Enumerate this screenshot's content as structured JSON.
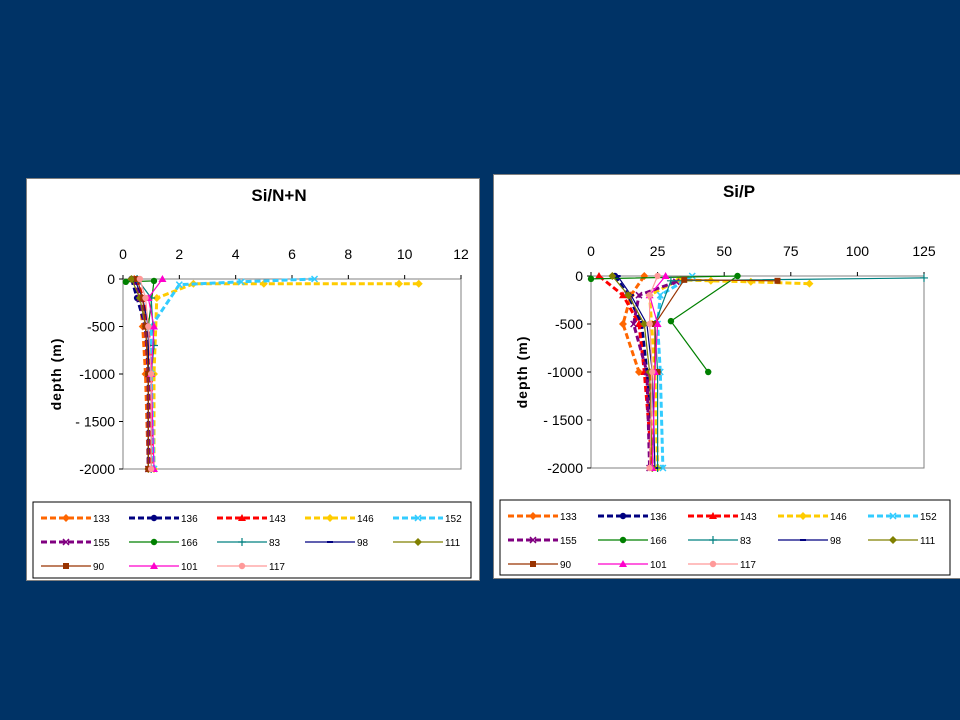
{
  "chart_data": [
    {
      "type": "line",
      "title": "Si/N+N",
      "ylabel": "depth (m)",
      "xlabel": "",
      "xlim": [
        0,
        12
      ],
      "ylim": [
        -2000,
        0
      ],
      "xticks": [
        "0",
        "2",
        "4",
        "6",
        "8",
        "10",
        "12"
      ],
      "yticks": [
        "0",
        "-500",
        "-1000",
        "- 1500",
        "-2000"
      ],
      "grid": false,
      "legend": "bottom",
      "series": [
        {
          "name": "133",
          "color": "#ff6600",
          "dash": "6,3",
          "marker": "diamond",
          "x": [
            0.4,
            0.6,
            0.7,
            0.8,
            0.9
          ],
          "y": [
            0,
            -200,
            -500,
            -1000,
            -2000
          ]
        },
        {
          "name": "136",
          "color": "#000080",
          "dash": "6,3",
          "marker": "circle",
          "x": [
            0.3,
            0.5,
            0.8,
            0.9,
            0.9
          ],
          "y": [
            0,
            -200,
            -500,
            -1000,
            -2000
          ]
        },
        {
          "name": "143",
          "color": "#ff0000",
          "dash": "6,3",
          "marker": "triangle",
          "x": [
            0.5,
            0.7,
            0.9,
            1.0,
            1.0
          ],
          "y": [
            0,
            -200,
            -500,
            -1000,
            -2000
          ]
        },
        {
          "name": "146",
          "color": "#ffcc00",
          "dash": "6,3",
          "marker": "diamond",
          "x": [
            10.5,
            9.8,
            5.0,
            2.5,
            1.2,
            1.1,
            1.1
          ],
          "y": [
            -50,
            -50,
            -50,
            -50,
            -200,
            -1000,
            -2000
          ]
        },
        {
          "name": "152",
          "color": "#33ccff",
          "dash": "6,3",
          "marker": "x",
          "x": [
            6.8,
            4.2,
            2.0,
            1.0,
            1.0,
            1.1
          ],
          "y": [
            0,
            -30,
            -60,
            -500,
            -1000,
            -2000
          ]
        },
        {
          "name": "155",
          "color": "#800080",
          "dash": "6,3",
          "marker": "x",
          "x": [
            0.4,
            0.6,
            0.8,
            0.9,
            0.9
          ],
          "y": [
            0,
            -200,
            -500,
            -1000,
            -2000
          ]
        },
        {
          "name": "166",
          "color": "#008000",
          "dash": "",
          "marker": "circle",
          "x": [
            0.1,
            1.1,
            0.9,
            0.9
          ],
          "y": [
            -30,
            -20,
            -500,
            -1000
          ]
        },
        {
          "name": "83",
          "color": "#008080",
          "dash": "",
          "marker": "plus",
          "x": [
            0.5,
            1.0,
            1.1,
            1.0,
            1.0
          ],
          "y": [
            0,
            -200,
            -700,
            -1000,
            -2000
          ]
        },
        {
          "name": "98",
          "color": "#000080",
          "dash": "",
          "marker": "dash",
          "x": [
            0.4,
            0.7,
            0.9,
            0.9,
            0.9
          ],
          "y": [
            0,
            -200,
            -500,
            -1000,
            -2000
          ]
        },
        {
          "name": "111",
          "color": "#808000",
          "dash": "",
          "marker": "diamond",
          "x": [
            0.3,
            0.6,
            0.8,
            0.9,
            0.9
          ],
          "y": [
            0,
            -200,
            -500,
            -1000,
            -2000
          ]
        },
        {
          "name": "90",
          "color": "#993300",
          "dash": "",
          "marker": "square",
          "x": [
            0.5,
            0.7,
            0.8,
            0.9,
            0.9
          ],
          "y": [
            0,
            -200,
            -500,
            -1000,
            -2000
          ]
        },
        {
          "name": "101",
          "color": "#ff00cc",
          "dash": "",
          "marker": "triangle",
          "x": [
            1.4,
            0.9,
            1.1,
            1.0,
            1.1
          ],
          "y": [
            0,
            -200,
            -500,
            -1000,
            -2000
          ]
        },
        {
          "name": "117",
          "color": "#ff9999",
          "dash": "",
          "marker": "circle",
          "x": [
            0.6,
            0.8,
            0.9,
            1.0,
            1.0
          ],
          "y": [
            0,
            -200,
            -500,
            -1000,
            -2000
          ]
        }
      ]
    },
    {
      "type": "line",
      "title": "Si/P",
      "ylabel": "depth (m)",
      "xlabel": "",
      "xlim": [
        0,
        125
      ],
      "ylim": [
        -2000,
        0
      ],
      "xticks": [
        "0",
        "25",
        "50",
        "75",
        "100",
        "125"
      ],
      "yticks": [
        "0",
        "-500",
        "-1000",
        "- 1500",
        "-2000"
      ],
      "grid": false,
      "legend": "bottom",
      "series": [
        {
          "name": "133",
          "color": "#ff6600",
          "dash": "6,3",
          "marker": "diamond",
          "x": [
            20,
            15,
            12,
            18,
            22,
            23
          ],
          "y": [
            0,
            -200,
            -500,
            -1000,
            -1000,
            -2000
          ]
        },
        {
          "name": "136",
          "color": "#000080",
          "dash": "6,3",
          "marker": "circle",
          "x": [
            9,
            14,
            19,
            21,
            23
          ],
          "y": [
            0,
            -200,
            -500,
            -1000,
            -2000
          ]
        },
        {
          "name": "143",
          "color": "#ff0000",
          "dash": "6,3",
          "marker": "triangle",
          "x": [
            3,
            12,
            18,
            20,
            23
          ],
          "y": [
            0,
            -200,
            -500,
            -1000,
            -2000
          ]
        },
        {
          "name": "146",
          "color": "#ffcc00",
          "dash": "6,3",
          "marker": "diamond",
          "x": [
            82,
            60,
            45,
            33,
            22,
            24,
            25
          ],
          "y": [
            -80,
            -60,
            -50,
            -40,
            -200,
            -1000,
            -2000
          ]
        },
        {
          "name": "152",
          "color": "#33ccff",
          "dash": "6,3",
          "marker": "x",
          "x": [
            38,
            26,
            25,
            26,
            27
          ],
          "y": [
            0,
            -200,
            -500,
            -1000,
            -2000
          ]
        },
        {
          "name": "155",
          "color": "#800080",
          "dash": "6,3",
          "marker": "x",
          "x": [
            32,
            18,
            16,
            21,
            22
          ],
          "y": [
            -60,
            -200,
            -500,
            -1000,
            -2000
          ]
        },
        {
          "name": "166",
          "color": "#008000",
          "dash": "",
          "marker": "circle",
          "x": [
            0,
            55,
            30,
            44
          ],
          "y": [
            -30,
            0,
            -470,
            -1000
          ]
        },
        {
          "name": "83",
          "color": "#008080",
          "dash": "",
          "marker": "plus",
          "x": [
            125,
            30,
            24,
            25,
            25
          ],
          "y": [
            -20,
            -50,
            -500,
            -1000,
            -2000
          ]
        },
        {
          "name": "98",
          "color": "#000080",
          "dash": "",
          "marker": "dash",
          "x": [
            10,
            15,
            21,
            23,
            24
          ],
          "y": [
            0,
            -200,
            -500,
            -1000,
            -2000
          ]
        },
        {
          "name": "111",
          "color": "#808000",
          "dash": "",
          "marker": "diamond",
          "x": [
            8,
            14,
            20,
            22,
            23
          ],
          "y": [
            0,
            -200,
            -500,
            -1000,
            -2000
          ]
        },
        {
          "name": "90",
          "color": "#993300",
          "dash": "",
          "marker": "square",
          "x": [
            70,
            35,
            24,
            24,
            25
          ],
          "y": [
            -50,
            -40,
            -500,
            -1000,
            -1000
          ]
        },
        {
          "name": "101",
          "color": "#ff00cc",
          "dash": "",
          "marker": "triangle",
          "x": [
            28,
            22,
            25,
            24,
            23
          ],
          "y": [
            0,
            -200,
            -500,
            -1000,
            -2000
          ]
        },
        {
          "name": "117",
          "color": "#ff9999",
          "dash": "",
          "marker": "circle",
          "x": [
            25,
            22,
            22,
            23,
            22
          ],
          "y": [
            0,
            -200,
            -500,
            -1000,
            -2000
          ]
        }
      ]
    }
  ],
  "colors": {
    "background": "#003366",
    "panel": "#ffffff"
  }
}
